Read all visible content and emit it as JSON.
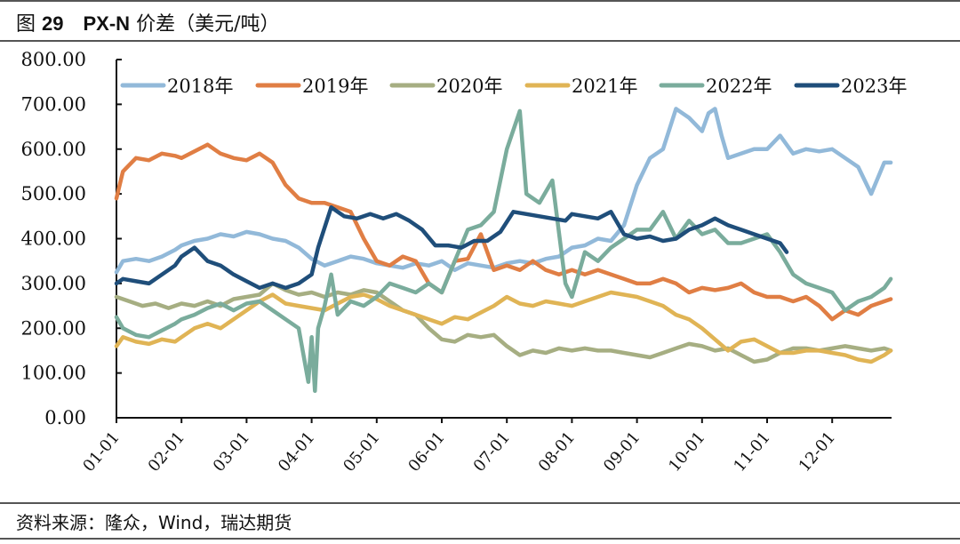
{
  "header": {
    "figure_label": "图",
    "figure_number": "29",
    "title_main": "PX-N",
    "title_rest": "价差（美元/吨）"
  },
  "footer": {
    "source": "资料来源：隆众，Wind，瑞达期货"
  },
  "chart_data": {
    "type": "line",
    "title": "PX-N 价差（美元/吨）",
    "xlabel": "",
    "ylabel": "",
    "ylim": [
      0,
      800
    ],
    "yticks": [
      "0.00",
      "100.00",
      "200.00",
      "300.00",
      "400.00",
      "500.00",
      "600.00",
      "700.00",
      "800.00"
    ],
    "xticks": [
      "01-01",
      "02-01",
      "03-01",
      "04-01",
      "05-01",
      "06-01",
      "07-01",
      "08-01",
      "09-01",
      "10-01",
      "11-01",
      "12-01"
    ],
    "x_unit": "months since 01-01",
    "legend_position": "top",
    "grid": false,
    "series": [
      {
        "name": "2018年",
        "color": "#92B9D9",
        "x": [
          0,
          0.1,
          0.3,
          0.5,
          0.7,
          0.9,
          1.0,
          1.2,
          1.4,
          1.6,
          1.8,
          2.0,
          2.2,
          2.4,
          2.6,
          2.8,
          3.0,
          3.2,
          3.4,
          3.6,
          3.8,
          4.0,
          4.2,
          4.4,
          4.6,
          4.8,
          5.0,
          5.2,
          5.4,
          5.6,
          5.8,
          6.0,
          6.2,
          6.4,
          6.6,
          6.8,
          7.0,
          7.2,
          7.4,
          7.6,
          7.8,
          8.0,
          8.2,
          8.4,
          8.6,
          8.8,
          9.0,
          9.1,
          9.2,
          9.3,
          9.4,
          9.6,
          9.8,
          10.0,
          10.2,
          10.4,
          10.6,
          10.8,
          11.0,
          11.2,
          11.4,
          11.6,
          11.8,
          11.9
        ],
        "values": [
          325,
          350,
          355,
          350,
          360,
          375,
          385,
          395,
          400,
          410,
          405,
          415,
          410,
          400,
          395,
          380,
          355,
          340,
          350,
          360,
          355,
          345,
          340,
          335,
          345,
          340,
          350,
          330,
          345,
          340,
          335,
          345,
          350,
          345,
          355,
          360,
          380,
          385,
          400,
          395,
          430,
          520,
          580,
          600,
          690,
          670,
          640,
          680,
          690,
          630,
          580,
          590,
          600,
          600,
          630,
          590,
          600,
          595,
          600,
          580,
          560,
          500,
          570,
          570
        ]
      },
      {
        "name": "2019年",
        "color": "#E07E44",
        "x": [
          0,
          0.1,
          0.3,
          0.5,
          0.7,
          0.9,
          1.0,
          1.2,
          1.4,
          1.6,
          1.8,
          2.0,
          2.2,
          2.4,
          2.6,
          2.8,
          3.0,
          3.2,
          3.4,
          3.6,
          3.8,
          4.0,
          4.2,
          4.4,
          4.6,
          4.8,
          5.0,
          5.2,
          5.4,
          5.6,
          5.8,
          6.0,
          6.2,
          6.4,
          6.6,
          6.8,
          7.0,
          7.2,
          7.4,
          7.6,
          7.8,
          8.0,
          8.2,
          8.4,
          8.6,
          8.8,
          9.0,
          9.2,
          9.4,
          9.6,
          9.8,
          10.0,
          10.2,
          10.4,
          10.6,
          10.8,
          11.0,
          11.2,
          11.4,
          11.6,
          11.8,
          11.9
        ],
        "values": [
          490,
          550,
          580,
          575,
          590,
          585,
          580,
          595,
          610,
          590,
          580,
          575,
          590,
          570,
          520,
          490,
          480,
          480,
          470,
          460,
          400,
          350,
          340,
          360,
          350,
          300,
          280,
          350,
          355,
          410,
          330,
          340,
          330,
          350,
          330,
          320,
          330,
          320,
          330,
          320,
          310,
          300,
          300,
          310,
          300,
          280,
          290,
          285,
          290,
          300,
          280,
          270,
          270,
          260,
          270,
          250,
          220,
          240,
          230,
          250,
          260,
          265
        ]
      },
      {
        "name": "2020年",
        "color": "#A6AE82",
        "x": [
          0,
          0.2,
          0.4,
          0.6,
          0.8,
          1.0,
          1.2,
          1.4,
          1.6,
          1.8,
          2.0,
          2.2,
          2.4,
          2.6,
          2.8,
          3.0,
          3.2,
          3.4,
          3.6,
          3.8,
          4.0,
          4.2,
          4.4,
          4.6,
          4.8,
          5.0,
          5.2,
          5.4,
          5.6,
          5.8,
          6.0,
          6.2,
          6.4,
          6.6,
          6.8,
          7.0,
          7.2,
          7.4,
          7.6,
          7.8,
          8.0,
          8.2,
          8.4,
          8.6,
          8.8,
          9.0,
          9.2,
          9.4,
          9.6,
          9.8,
          10.0,
          10.2,
          10.4,
          10.6,
          10.8,
          11.0,
          11.2,
          11.4,
          11.6,
          11.8,
          11.9
        ],
        "values": [
          270,
          260,
          250,
          255,
          245,
          255,
          250,
          260,
          250,
          265,
          270,
          275,
          300,
          285,
          275,
          280,
          270,
          280,
          275,
          285,
          280,
          260,
          240,
          230,
          200,
          175,
          170,
          185,
          180,
          185,
          160,
          140,
          150,
          145,
          155,
          150,
          155,
          150,
          150,
          145,
          140,
          135,
          145,
          155,
          165,
          160,
          150,
          155,
          140,
          125,
          130,
          145,
          155,
          155,
          150,
          155,
          160,
          155,
          150,
          155,
          150
        ]
      },
      {
        "name": "2021年",
        "color": "#E0B455",
        "x": [
          0,
          0.1,
          0.3,
          0.5,
          0.7,
          0.9,
          1.0,
          1.2,
          1.4,
          1.6,
          1.8,
          2.0,
          2.2,
          2.4,
          2.6,
          2.8,
          3.0,
          3.2,
          3.4,
          3.6,
          3.8,
          4.0,
          4.2,
          4.4,
          4.6,
          4.8,
          5.0,
          5.2,
          5.4,
          5.6,
          5.8,
          6.0,
          6.2,
          6.4,
          6.6,
          6.8,
          7.0,
          7.2,
          7.4,
          7.6,
          7.8,
          8.0,
          8.2,
          8.4,
          8.6,
          8.8,
          9.0,
          9.2,
          9.4,
          9.6,
          9.8,
          10.0,
          10.2,
          10.4,
          10.6,
          10.8,
          11.0,
          11.2,
          11.4,
          11.6,
          11.8,
          11.9
        ],
        "values": [
          160,
          180,
          170,
          165,
          175,
          170,
          180,
          200,
          210,
          200,
          220,
          240,
          260,
          275,
          255,
          250,
          245,
          240,
          255,
          270,
          275,
          265,
          250,
          240,
          230,
          220,
          210,
          225,
          220,
          235,
          250,
          270,
          255,
          250,
          260,
          255,
          250,
          260,
          270,
          280,
          275,
          270,
          260,
          250,
          230,
          220,
          200,
          175,
          150,
          170,
          175,
          160,
          145,
          145,
          150,
          150,
          145,
          140,
          130,
          125,
          140,
          150
        ]
      },
      {
        "name": "2022年",
        "color": "#7AAC9C",
        "x": [
          0,
          0.1,
          0.3,
          0.5,
          0.7,
          0.9,
          1.0,
          1.2,
          1.4,
          1.6,
          1.8,
          2.0,
          2.2,
          2.4,
          2.6,
          2.8,
          2.95,
          3.0,
          3.05,
          3.1,
          3.2,
          3.3,
          3.4,
          3.6,
          3.8,
          4.0,
          4.2,
          4.4,
          4.6,
          4.8,
          5.0,
          5.2,
          5.4,
          5.6,
          5.8,
          6.0,
          6.2,
          6.3,
          6.5,
          6.7,
          6.9,
          7.0,
          7.2,
          7.4,
          7.6,
          7.8,
          8.0,
          8.2,
          8.4,
          8.6,
          8.8,
          9.0,
          9.2,
          9.4,
          9.6,
          9.8,
          10.0,
          10.2,
          10.4,
          10.6,
          10.8,
          11.0,
          11.2,
          11.4,
          11.6,
          11.8,
          11.9
        ],
        "values": [
          225,
          200,
          185,
          180,
          195,
          210,
          220,
          230,
          245,
          255,
          240,
          255,
          260,
          240,
          220,
          200,
          80,
          180,
          60,
          200,
          250,
          320,
          230,
          260,
          250,
          270,
          300,
          290,
          280,
          300,
          280,
          350,
          420,
          430,
          460,
          600,
          685,
          500,
          480,
          530,
          300,
          270,
          370,
          350,
          380,
          400,
          420,
          420,
          460,
          400,
          440,
          410,
          420,
          390,
          390,
          400,
          410,
          370,
          320,
          300,
          290,
          280,
          240,
          260,
          270,
          290,
          310
        ]
      },
      {
        "name": "2023年",
        "color": "#1F4E7A",
        "x": [
          0,
          0.1,
          0.3,
          0.5,
          0.7,
          0.9,
          1.0,
          1.2,
          1.4,
          1.6,
          1.8,
          2.0,
          2.2,
          2.4,
          2.6,
          2.8,
          3.0,
          3.1,
          3.3,
          3.5,
          3.7,
          3.9,
          4.1,
          4.3,
          4.5,
          4.7,
          4.9,
          5.1,
          5.3,
          5.5,
          5.7,
          5.9,
          6.1,
          6.3,
          6.5,
          6.7,
          6.9,
          7.0,
          7.2,
          7.4,
          7.6,
          7.8,
          8.0,
          8.2,
          8.4,
          8.6,
          8.8,
          9.0,
          9.2,
          9.4,
          9.6,
          9.8,
          10.0,
          10.2,
          10.3
        ],
        "values": [
          300,
          310,
          305,
          300,
          320,
          340,
          360,
          380,
          350,
          340,
          320,
          305,
          290,
          300,
          290,
          300,
          320,
          380,
          470,
          450,
          445,
          455,
          445,
          455,
          440,
          420,
          385,
          385,
          380,
          395,
          395,
          415,
          460,
          455,
          450,
          445,
          440,
          455,
          450,
          445,
          460,
          410,
          400,
          405,
          395,
          400,
          420,
          430,
          445,
          430,
          420,
          410,
          400,
          390,
          370
        ]
      }
    ]
  }
}
